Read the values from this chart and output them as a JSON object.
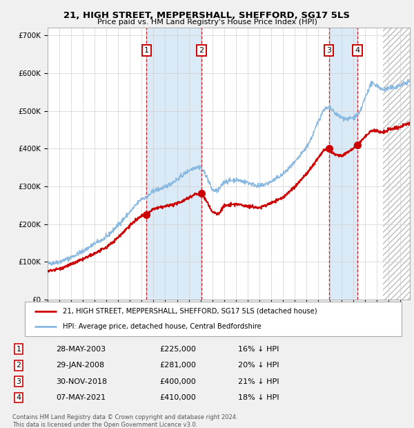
{
  "title1": "21, HIGH STREET, MEPPERSHALL, SHEFFORD, SG17 5LS",
  "title2": "Price paid vs. HM Land Registry's House Price Index (HPI)",
  "ylim": [
    0,
    720000
  ],
  "xlim_start": 1995.0,
  "xlim_end": 2025.8,
  "yticks": [
    0,
    100000,
    200000,
    300000,
    400000,
    500000,
    600000,
    700000
  ],
  "ytick_labels": [
    "£0",
    "£100K",
    "£200K",
    "£300K",
    "£400K",
    "£500K",
    "£600K",
    "£700K"
  ],
  "sale_dates": [
    2003.4,
    2008.08,
    2018.92,
    2021.35
  ],
  "sale_prices": [
    225000,
    281000,
    400000,
    410000
  ],
  "sale_labels": [
    "1",
    "2",
    "3",
    "4"
  ],
  "hpi_color": "#89b8e0",
  "red_color": "#cc0000",
  "shade_color": "#daeaf7",
  "hatch_start": 2023.5,
  "legend_entries": [
    "21, HIGH STREET, MEPPERSHALL, SHEFFORD, SG17 5LS (detached house)",
    "HPI: Average price, detached house, Central Bedfordshire"
  ],
  "table_rows": [
    [
      "1",
      "28-MAY-2003",
      "£225,000",
      "16% ↓ HPI"
    ],
    [
      "2",
      "29-JAN-2008",
      "£281,000",
      "20% ↓ HPI"
    ],
    [
      "3",
      "30-NOV-2018",
      "£400,000",
      "21% ↓ HPI"
    ],
    [
      "4",
      "07-MAY-2021",
      "£410,000",
      "18% ↓ HPI"
    ]
  ],
  "footnote": "Contains HM Land Registry data © Crown copyright and database right 2024.\nThis data is licensed under the Open Government Licence v3.0."
}
